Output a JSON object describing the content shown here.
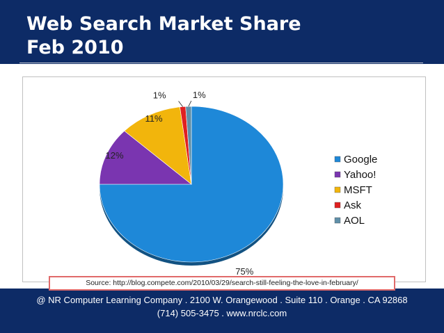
{
  "slide": {
    "title_line1": "Web Search Market Share",
    "title_line2": "Feb 2010",
    "source": "Source: http://blog.compete.com/2010/03/29/search-still-feeling-the-love-in-february/",
    "footer_line1": "@ NR Computer Learning Company . 2100 W. Orangewood . Suite 110 . Orange . CA 92868",
    "footer_line2": "(714) 505-3475 . www.nrclc.com"
  },
  "chart_data": {
    "type": "pie",
    "title": "",
    "legend_position": "right",
    "slices": [
      {
        "name": "Google",
        "value": 75,
        "label": "75%",
        "color": "#1e88d8"
      },
      {
        "name": "Yahoo!",
        "value": 12,
        "label": "12%",
        "color": "#7a35b0"
      },
      {
        "name": "MSFT",
        "value": 11,
        "label": "11%",
        "color": "#f2b50c"
      },
      {
        "name": "Ask",
        "value": 1,
        "label": "1%",
        "color": "#e02020"
      },
      {
        "name": "AOL",
        "value": 1,
        "label": "1%",
        "color": "#5f8fa8"
      }
    ]
  },
  "colors": {
    "background": "#0d2b66",
    "source_border": "#e06a6a"
  }
}
